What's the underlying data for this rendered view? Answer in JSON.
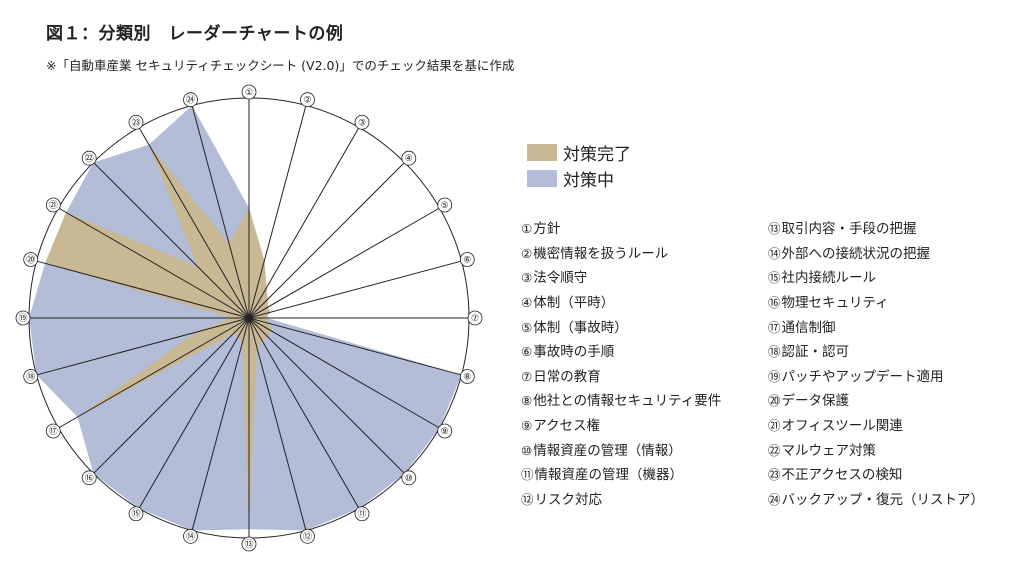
{
  "title": "図１：分類別　レーダーチャートの例",
  "subtitle": "※「自動車産業 セキュリティチェックシート (V2.0)」でのチェック結果を基に作成",
  "colors": {
    "done": "#c8b894",
    "in_progress": "#b3bdd8",
    "grid": "#222222"
  },
  "chart_data": {
    "type": "radar",
    "axes": [
      "①",
      "②",
      "③",
      "④",
      "⑤",
      "⑥",
      "⑦",
      "⑧",
      "⑨",
      "⑩",
      "⑪",
      "⑫",
      "⑬",
      "⑭",
      "⑮",
      "⑯",
      "⑰",
      "⑱",
      "⑲",
      "⑳",
      "㉑",
      "㉒",
      "㉓",
      "㉔"
    ],
    "range": [
      0,
      100
    ],
    "series": [
      {
        "name": "対策完了",
        "values": [
          50,
          27,
          16,
          12,
          10,
          10,
          8,
          10,
          12,
          12,
          12,
          14,
          96,
          12,
          10,
          10,
          90,
          25,
          8,
          96,
          96,
          33,
          91,
          35
        ]
      },
      {
        "name": "対策中",
        "values": [
          0,
          0,
          0,
          0,
          0,
          0,
          0,
          90,
          92,
          90,
          92,
          94,
          0,
          92,
          94,
          92,
          0,
          90,
          94,
          0,
          0,
          90,
          0,
          90
        ]
      }
    ],
    "stacked": true,
    "legend": "right",
    "grid": true
  },
  "legend_items": [
    {
      "label": "対策完了"
    },
    {
      "label": "対策中"
    }
  ],
  "categories_left": [
    {
      "num": "①",
      "text": "方針"
    },
    {
      "num": "②",
      "text": "機密情報を扱うルール"
    },
    {
      "num": "③",
      "text": "法令順守"
    },
    {
      "num": "④",
      "text": "体制（平時）"
    },
    {
      "num": "⑤",
      "text": "体制（事故時）"
    },
    {
      "num": "⑥",
      "text": "事故時の手順"
    },
    {
      "num": "⑦",
      "text": "日常の教育"
    },
    {
      "num": "⑧",
      "text": "他社との情報セキュリティ要件"
    },
    {
      "num": "⑨",
      "text": "アクセス権"
    },
    {
      "num": "⑩",
      "text": "情報資産の管理（情報）"
    },
    {
      "num": "⑪",
      "text": "情報資産の管理（機器）"
    },
    {
      "num": "⑫",
      "text": "リスク対応"
    }
  ],
  "categories_right": [
    {
      "num": "⑬",
      "text": "取引内容・手段の把握"
    },
    {
      "num": "⑭",
      "text": "外部への接続状況の把握"
    },
    {
      "num": "⑮",
      "text": "社内接続ルール"
    },
    {
      "num": "⑯",
      "text": "物理セキュリティ"
    },
    {
      "num": "⑰",
      "text": "通信制御"
    },
    {
      "num": "⑱",
      "text": "認証・認可"
    },
    {
      "num": "⑲",
      "text": "パッチやアップデート適用"
    },
    {
      "num": "⑳",
      "text": "データ保護"
    },
    {
      "num": "㉑",
      "text": "オフィスツール関連"
    },
    {
      "num": "㉒",
      "text": "マルウェア対策"
    },
    {
      "num": "㉓",
      "text": "不正アクセスの検知"
    },
    {
      "num": "㉔",
      "text": "バックアップ・復元（リストア）"
    }
  ]
}
